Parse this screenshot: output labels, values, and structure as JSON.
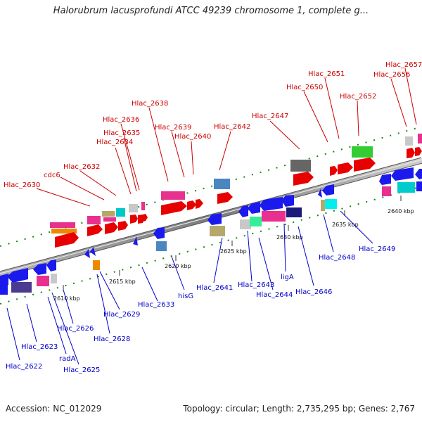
{
  "title": "Halorubrum lacusprofundi ATCC 49239 chromosome 1, complete g...",
  "footer": {
    "accession": "Accession: NC_012029",
    "summary": "Topology: circular; Length: 2,735,295 bp; Genes: 2,767"
  },
  "colors": {
    "forward_label": "#cc0000",
    "reverse_label": "#0000cc",
    "backbone": "#888888",
    "tick_mark": "#118811"
  },
  "scale_labels": [
    "2610 kbp",
    "2615 kbp",
    "2620 kbp",
    "2625 kbp",
    "2630 kbp",
    "2635 kbp",
    "2640 kbp"
  ],
  "forward_genes": [
    "Hlac_2630",
    "cdc6",
    "Hlac_2632",
    "Hlac_2634",
    "Hlac_2635",
    "Hlac_2636",
    "Hlac_2638",
    "Hlac_2639",
    "Hlac_2640",
    "Hlac_2642",
    "Hlac_2647",
    "Hlac_2650",
    "Hlac_2651",
    "Hlac_2652",
    "Hlac_2656",
    "Hlac_2657"
  ],
  "reverse_genes": [
    "Hlac_2622",
    "Hlac_2623",
    "radA",
    "Hlac_2625",
    "Hlac_2626",
    "Hlac_2628",
    "Hlac_2629",
    "Hlac_2633",
    "hisG",
    "Hlac_2641",
    "Hlac_2643",
    "Hlac_2644",
    "ligA",
    "Hlac_2646",
    "Hlac_2648",
    "Hlac_2649"
  ]
}
